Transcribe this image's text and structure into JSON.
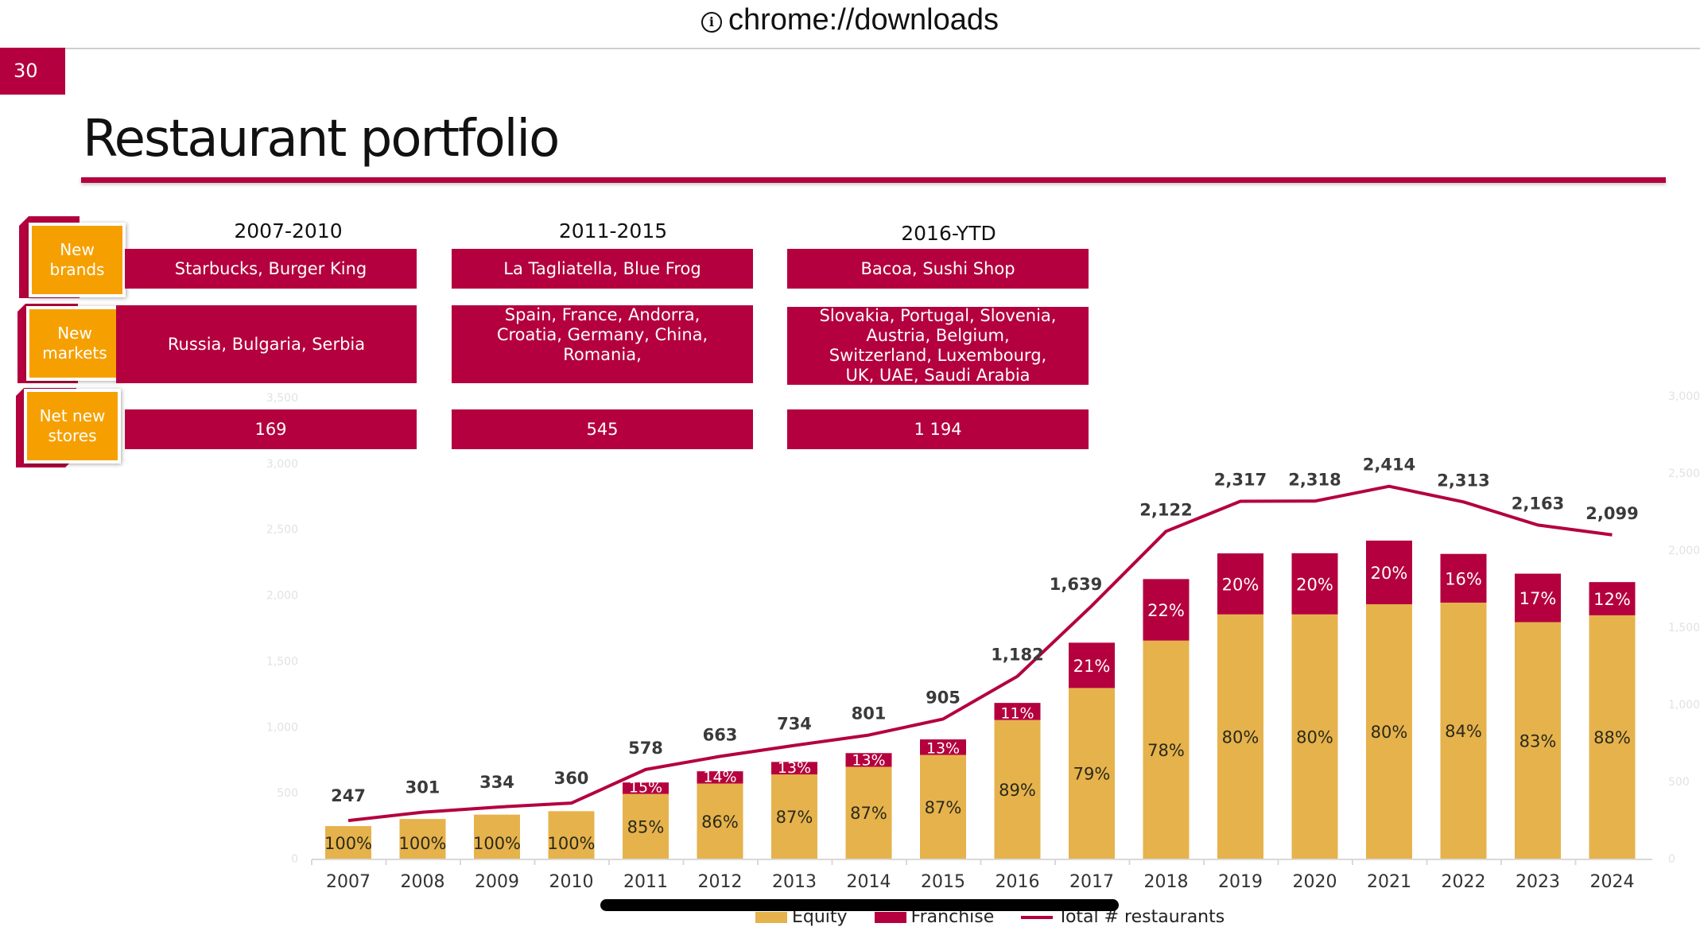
{
  "browser": {
    "url": "chrome://downloads",
    "info_icon": "info-circle-icon"
  },
  "slide": {
    "page_number": "30",
    "title": "Restaurant portfolio"
  },
  "colors": {
    "crimson": "#B4003E",
    "gold": "#E6B24C",
    "orange": "#F5A000"
  },
  "summary_table": {
    "row_labels": [
      "New brands",
      "New markets",
      "Net new stores"
    ],
    "columns": [
      {
        "period": "2007-2010",
        "new_brands": "Starbucks, Burger King",
        "new_markets": "Russia, Bulgaria, Serbia",
        "net_new_stores": "169"
      },
      {
        "period": "2011-2015",
        "new_brands": "La Tagliatella, Blue Frog",
        "new_markets": "Spain, France, Andorra, Croatia, Germany, China, Romania,",
        "net_new_stores": "545"
      },
      {
        "period": "2016-YTD",
        "new_brands": "Bacoa, Sushi Shop",
        "new_markets": "Slovakia, Portugal, Slovenia, Austria, Belgium, Switzerland, Luxembourg, UK, UAE, Saudi Arabia",
        "net_new_stores": "1 194"
      }
    ]
  },
  "chart_data": {
    "type": "bar",
    "stacked": true,
    "title": "",
    "xlabel": "",
    "ylabel": "",
    "categories": [
      "2007",
      "2008",
      "2009",
      "2010",
      "2011",
      "2012",
      "2013",
      "2014",
      "2015",
      "2016",
      "2017",
      "2018",
      "2019",
      "2020",
      "2021",
      "2022",
      "2023",
      "2024"
    ],
    "series": [
      {
        "name": "Equity",
        "kind": "bar",
        "share_labels": [
          "100%",
          "100%",
          "100%",
          "100%",
          "85%",
          "86%",
          "87%",
          "87%",
          "87%",
          "89%",
          "79%",
          "78%",
          "80%",
          "80%",
          "80%",
          "84%",
          "83%",
          "88%"
        ],
        "values": [
          247,
          301,
          334,
          360,
          491,
          570,
          639,
          697,
          787,
          1052,
          1295,
          1655,
          1854,
          1854,
          1931,
          1943,
          1795,
          1847
        ]
      },
      {
        "name": "Franchise",
        "kind": "bar",
        "share_labels": [
          "",
          "",
          "",
          "",
          "15%",
          "14%",
          "13%",
          "13%",
          "13%",
          "11%",
          "21%",
          "22%",
          "20%",
          "20%",
          "20%",
          "16%",
          "17%",
          "12%"
        ],
        "values": [
          0,
          0,
          0,
          0,
          87,
          93,
          95,
          104,
          118,
          130,
          344,
          467,
          463,
          464,
          483,
          370,
          368,
          252
        ]
      },
      {
        "name": "Total # restaurants",
        "kind": "line",
        "values": [
          247,
          301,
          334,
          360,
          578,
          663,
          734,
          801,
          905,
          1182,
          1639,
          2122,
          2317,
          2318,
          2414,
          2313,
          2163,
          2099
        ]
      }
    ],
    "left_axis_ticks": [
      "0",
      "500",
      "1,000",
      "1,500",
      "2,000",
      "2,500",
      "3,000",
      "3,500"
    ],
    "right_axis_ticks": [
      "0",
      "500",
      "1,000",
      "1,500",
      "2,000",
      "2,500",
      "3,000"
    ],
    "ylim_bars": [
      0,
      3500
    ],
    "ylim_line": [
      0,
      3000
    ],
    "grid": false,
    "legend": {
      "position": "bottom",
      "entries": [
        "Equity",
        "Franchise",
        "Total # restaurants"
      ]
    }
  }
}
